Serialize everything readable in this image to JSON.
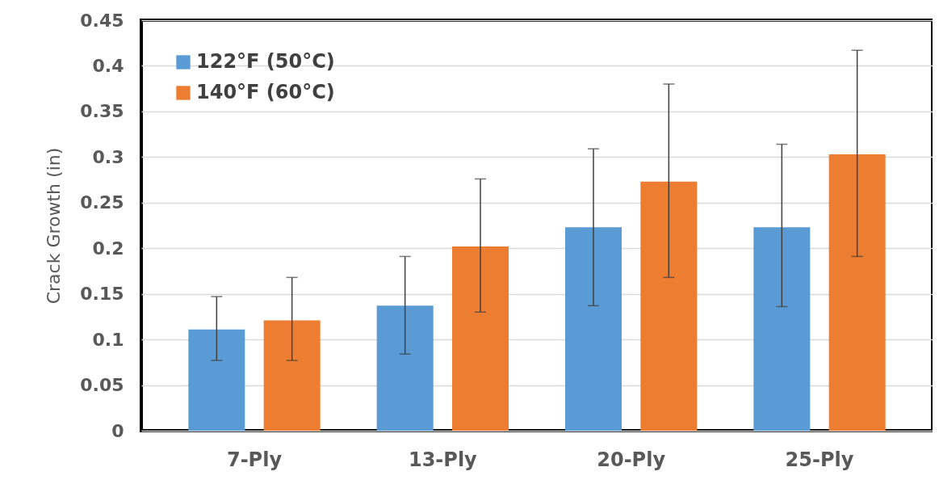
{
  "chart_data": {
    "type": "bar",
    "ylabel": "Crack Growth (in)",
    "categories": [
      "7-Ply",
      "13-Ply",
      "20-Ply",
      "25-Ply"
    ],
    "series": [
      {
        "name": "122°F (50°C)",
        "color": "#5b9bd5",
        "values": [
          0.111,
          0.137,
          0.223,
          0.223
        ],
        "errors": [
          [
            0.077,
            0.147
          ],
          [
            0.084,
            0.191
          ],
          [
            0.137,
            0.309
          ],
          [
            0.136,
            0.314
          ]
        ]
      },
      {
        "name": "140°F (60°C)",
        "color": "#ed7d31",
        "values": [
          0.121,
          0.202,
          0.273,
          0.303
        ],
        "errors": [
          [
            0.077,
            0.168
          ],
          [
            0.13,
            0.276
          ],
          [
            0.168,
            0.38
          ],
          [
            0.191,
            0.417
          ]
        ]
      }
    ],
    "ylim": [
      0,
      0.45
    ],
    "yticks": [
      0,
      0.05,
      0.1,
      0.15,
      0.2,
      0.25,
      0.3,
      0.35,
      0.4,
      0.45
    ],
    "grid": "y",
    "legend": "top left"
  }
}
